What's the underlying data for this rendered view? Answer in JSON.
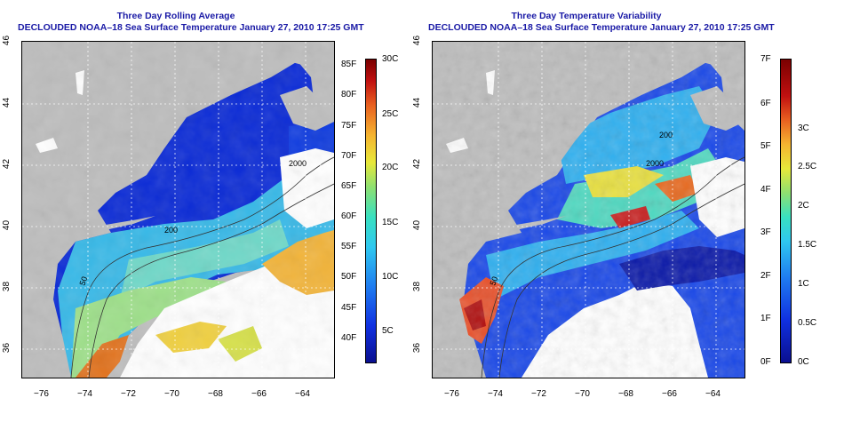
{
  "left_panel": {
    "title_line1": "Three Day Rolling Average",
    "title_line2": "DECLOUDED NOAA–18 Sea Surface Temperature January 27, 2010 17:25 GMT",
    "colorbar_F": [
      "85F",
      "80F",
      "75F",
      "70F",
      "65F",
      "60F",
      "55F",
      "50F",
      "45F",
      "40F"
    ],
    "colorbar_C": [
      "30C",
      "25C",
      "20C",
      "15C",
      "10C",
      "5C"
    ],
    "contour_labels": [
      "2000",
      "200",
      "50"
    ]
  },
  "right_panel": {
    "title_line1": "Three Day Temperature Variability",
    "title_line2": "DECLOUDED NOAA–18 Sea Surface Temperature January 27, 2010 17:25 GMT",
    "colorbar_F": [
      "7F",
      "6F",
      "5F",
      "4F",
      "3F",
      "2F",
      "1F",
      "0F"
    ],
    "colorbar_C": [
      "3C",
      "2.5C",
      "2C",
      "1.5C",
      "1C",
      "0.5C",
      "0C"
    ],
    "contour_labels": [
      "200",
      "2000",
      "50"
    ]
  },
  "axes": {
    "x_ticks": [
      "−76",
      "−74",
      "−72",
      "−70",
      "−68",
      "−66",
      "−64"
    ],
    "y_ticks": [
      "46",
      "44",
      "42",
      "40",
      "38",
      "36"
    ]
  },
  "colors": {
    "land": "#bdbdbd",
    "cloud": "#ffffff",
    "title": "#1a1aa6"
  }
}
